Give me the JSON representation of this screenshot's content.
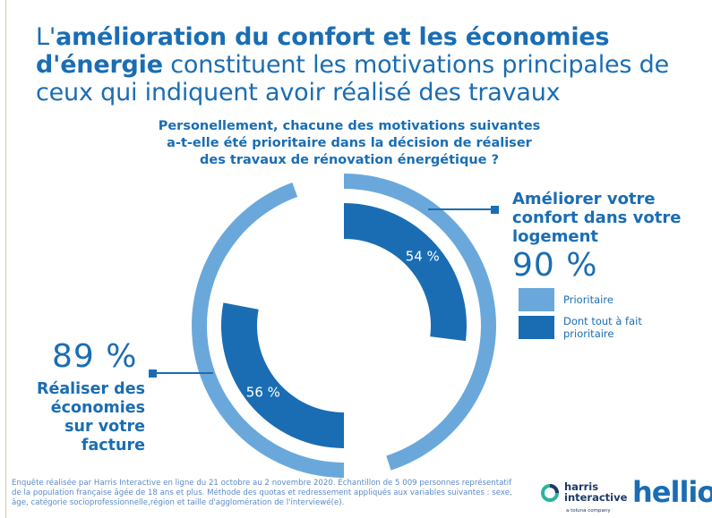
{
  "title": {
    "part1": "L'",
    "part2_bold": "amélioration du confort et les économies d'énergie",
    "part3": " constituent les motivations principales de ceux qui indiquent avoir réalisé des travaux"
  },
  "question": "Personellement, chacune des motivations suivantes a-t-elle été prioritaire dans la décision de réaliser des travaux de rénovation énergétique ?",
  "chart_data": {
    "type": "donut",
    "series": [
      {
        "name": "Améliorer votre confort dans votre logement",
        "prioritaire": 90,
        "prioritaire_label": "90 %",
        "tout_a_fait": 54,
        "tout_a_fait_label": "54 %"
      },
      {
        "name": "Réaliser des économies sur votre facture",
        "prioritaire": 89,
        "prioritaire_label": "89 %",
        "tout_a_fait": 56,
        "tout_a_fait_label": "56 %"
      }
    ],
    "legend": [
      {
        "label": "Prioritaire",
        "color": "#6aa8db"
      },
      {
        "label": "Dont tout à fait prioritaire",
        "color": "#1a6db3"
      }
    ]
  },
  "footnote": "Enquête réalisée par Harris Interactive en ligne du 21 octobre au 2 novembre 2020. Échantillon de 5 009 personnes représentatif de la population française âgée de 18 ans et plus. Méthode des quotas et redressement appliqués aux variables suivantes : sexe, âge, catégorie socioprofessionnelle,région et taille d'agglomération de l'interviewé(e).",
  "logos": {
    "harris_line1": "harris",
    "harris_line2": "interactive",
    "harris_sub": "a toluna company",
    "hellio": "hellio"
  },
  "colors": {
    "accent": "#1a6db3",
    "light": "#6aa8db"
  }
}
